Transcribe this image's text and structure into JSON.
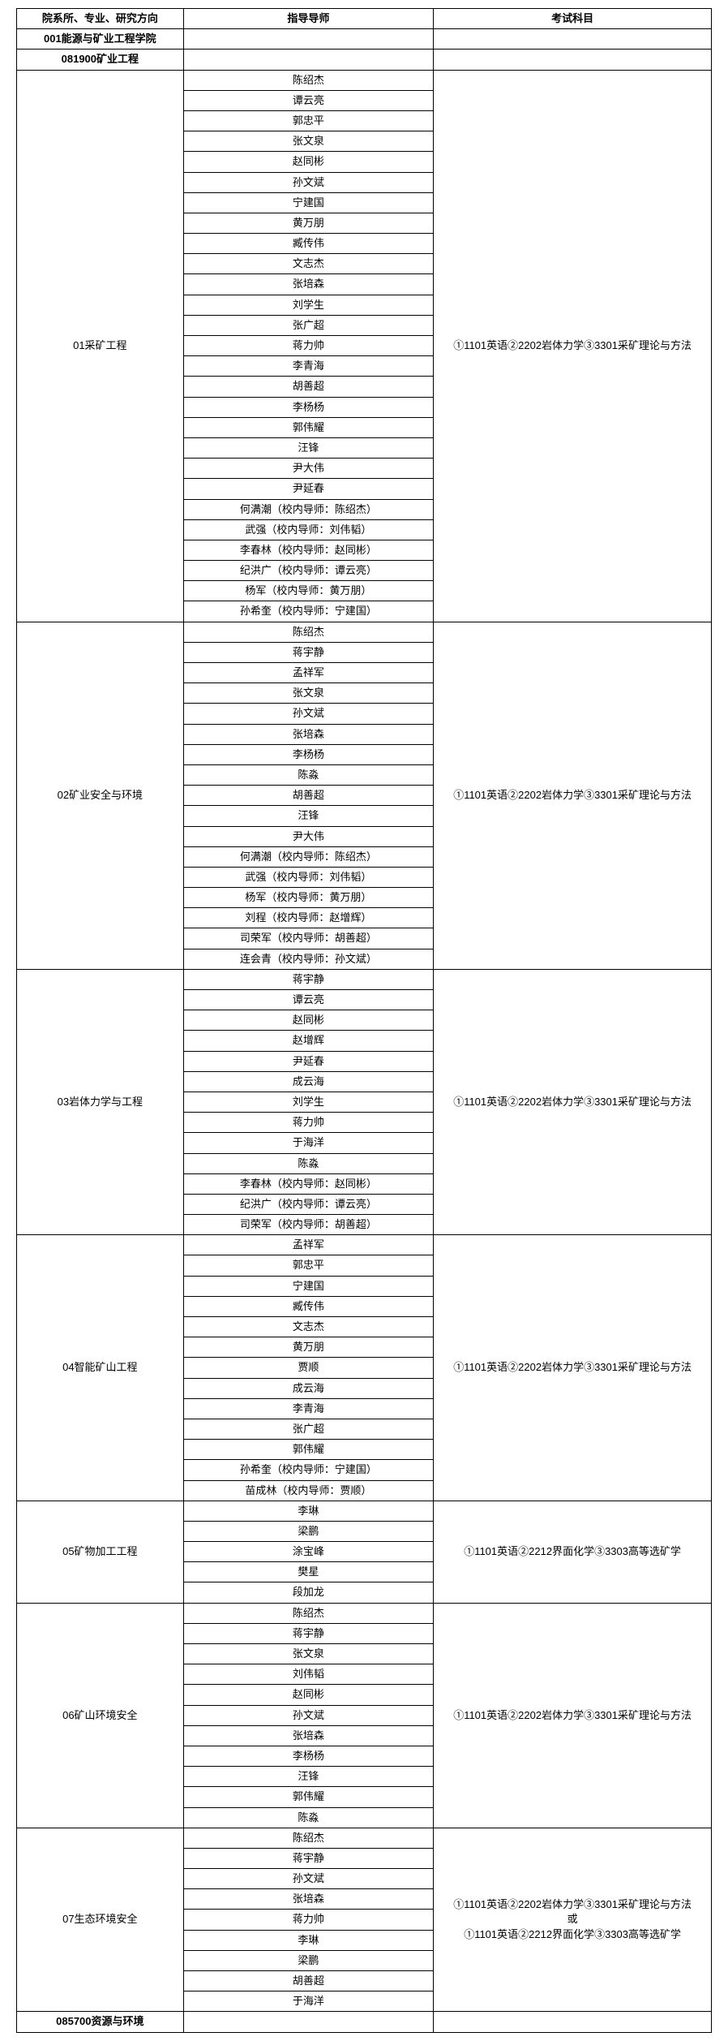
{
  "headers": {
    "direction": "院系所、专业、研究方向",
    "advisor": "指导导师",
    "subject": "考试科目"
  },
  "dept": "001能源与矿业工程学院",
  "major1": "081900矿业工程",
  "subjects": {
    "s1": "①1101英语②2202岩体力学③3301采矿理论与方法",
    "s2": "①1101英语②2212界面化学③3303高等选矿学",
    "s3": "①1101英语②2202岩体力学③3301采矿理论与方法\n或\n①1101英语②2212界面化学③3303高等选矿学"
  },
  "groups": [
    {
      "dir": "01采矿工程",
      "subjectKey": "s1",
      "advisors": [
        "陈绍杰",
        "谭云亮",
        "郭忠平",
        "张文泉",
        "赵同彬",
        "孙文斌",
        "宁建国",
        "黄万朋",
        "臧传伟",
        "文志杰",
        "张培森",
        "刘学生",
        "张广超",
        "蒋力帅",
        "李青海",
        "胡善超",
        "李杨杨",
        "郭伟耀",
        "汪锋",
        "尹大伟",
        "尹延春",
        "何满潮（校内导师：陈绍杰）",
        "武强（校内导师：刘伟韬）",
        "李春林（校内导师：赵同彬）",
        "纪洪广（校内导师：谭云亮）",
        "杨军（校内导师：黄万朋）",
        "孙希奎（校内导师：宁建国）"
      ]
    },
    {
      "dir": "02矿业安全与环境",
      "subjectKey": "s1",
      "advisors": [
        "陈绍杰",
        "蒋宇静",
        "孟祥军",
        "张文泉",
        "孙文斌",
        "张培森",
        "李杨杨",
        "陈淼",
        "胡善超",
        "汪锋",
        "尹大伟",
        "何满潮（校内导师：陈绍杰）",
        "武强（校内导师：刘伟韬）",
        "杨军（校内导师：黄万朋）",
        "刘程（校内导师：赵增辉）",
        "司荣军（校内导师：胡善超）",
        "连会青（校内导师：孙文斌）"
      ]
    },
    {
      "dir": "03岩体力学与工程",
      "subjectKey": "s1",
      "advisors": [
        "蒋宇静",
        "谭云亮",
        "赵同彬",
        "赵增辉",
        "尹延春",
        "成云海",
        "刘学生",
        "蒋力帅",
        "于海洋",
        "陈淼",
        "李春林（校内导师：赵同彬）",
        "纪洪广（校内导师：谭云亮）",
        "司荣军（校内导师：胡善超）"
      ]
    },
    {
      "dir": "04智能矿山工程",
      "subjectKey": "s1",
      "advisors": [
        "孟祥军",
        "郭忠平",
        "宁建国",
        "臧传伟",
        "文志杰",
        "黄万朋",
        "贾顺",
        "成云海",
        "李青海",
        "张广超",
        "郭伟耀",
        "孙希奎（校内导师：宁建国）",
        "苗成林（校内导师：贾顺）"
      ]
    },
    {
      "dir": "05矿物加工工程",
      "subjectKey": "s2",
      "advisors": [
        "李琳",
        "梁鹏",
        "涂宝峰",
        "樊星",
        "段加龙"
      ]
    },
    {
      "dir": "06矿山环境安全",
      "subjectKey": "s1",
      "advisors": [
        "陈绍杰",
        "蒋宇静",
        "张文泉",
        "刘伟韬",
        "赵同彬",
        "孙文斌",
        "张培森",
        "李杨杨",
        "汪锋",
        "郭伟耀",
        "陈淼"
      ]
    },
    {
      "dir": "07生态环境安全",
      "subjectKey": "s3",
      "advisors": [
        "陈绍杰",
        "蒋宇静",
        "孙文斌",
        "张培森",
        "蒋力帅",
        "李琳",
        "梁鹏",
        "胡善超",
        "于海洋"
      ]
    }
  ],
  "major2": "085700资源与环境"
}
